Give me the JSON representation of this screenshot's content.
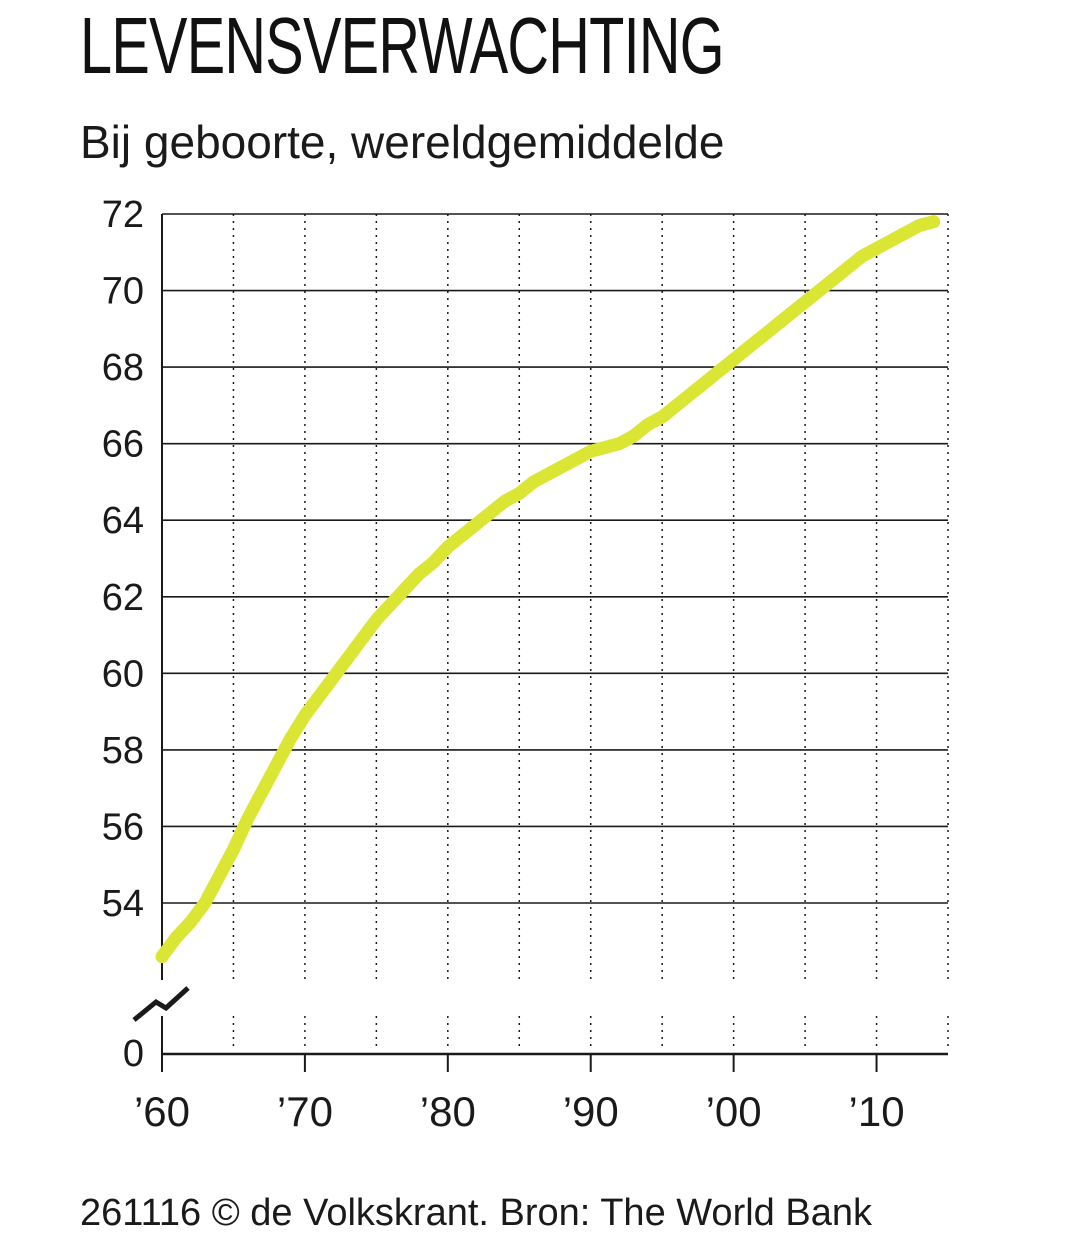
{
  "header": {
    "title": "LEVENSVERWACHTING",
    "subtitle": "Bij geboorte, wereldgemiddelde"
  },
  "footer": {
    "source": "261116 © de Volkskrant. Bron: The World Bank"
  },
  "colors": {
    "line": "#dbe534",
    "grid": "#1a1a1a",
    "axis": "#1a1a1a"
  },
  "chart_data": {
    "type": "line",
    "title": "LEVENSVERWACHTING",
    "subtitle": "Bij geboorte, wereldgemiddelde",
    "xlabel": "",
    "ylabel": "",
    "xlim": [
      1960,
      2015
    ],
    "ylim": [
      52,
      72
    ],
    "y_axis_break": true,
    "y_ticks": [
      72,
      70,
      68,
      66,
      64,
      62,
      60,
      58,
      56,
      54
    ],
    "y_zero_label": "0",
    "x_ticks": [
      {
        "value": 1960,
        "label": "’60"
      },
      {
        "value": 1970,
        "label": "’70"
      },
      {
        "value": 1980,
        "label": "’80"
      },
      {
        "value": 1990,
        "label": "’90"
      },
      {
        "value": 2000,
        "label": "’00"
      },
      {
        "value": 2010,
        "label": "’10"
      }
    ],
    "grid": {
      "horizontal": "solid",
      "vertical": "dotted",
      "vertical_every_years": 5
    },
    "series": [
      {
        "x": [
          1960,
          1961,
          1962,
          1963,
          1964,
          1965,
          1966,
          1967,
          1968,
          1969,
          1970,
          1971,
          1972,
          1973,
          1974,
          1975,
          1976,
          1977,
          1978,
          1979,
          1980,
          1981,
          1982,
          1983,
          1984,
          1985,
          1986,
          1987,
          1988,
          1989,
          1990,
          1991,
          1992,
          1993,
          1994,
          1995,
          1996,
          1997,
          1998,
          1999,
          2000,
          2001,
          2002,
          2003,
          2004,
          2005,
          2006,
          2007,
          2008,
          2009,
          2010,
          2011,
          2012,
          2013,
          2014
        ],
        "y": [
          52.6,
          53.1,
          53.5,
          54.0,
          54.7,
          55.4,
          56.2,
          56.9,
          57.6,
          58.3,
          58.9,
          59.4,
          59.9,
          60.4,
          60.9,
          61.4,
          61.8,
          62.2,
          62.6,
          62.9,
          63.3,
          63.6,
          63.9,
          64.2,
          64.5,
          64.7,
          65.0,
          65.2,
          65.4,
          65.6,
          65.8,
          65.9,
          66.0,
          66.2,
          66.5,
          66.7,
          67.0,
          67.3,
          67.6,
          67.9,
          68.2,
          68.5,
          68.8,
          69.1,
          69.4,
          69.7,
          70.0,
          70.3,
          70.6,
          70.9,
          71.1,
          71.3,
          71.5,
          71.7,
          71.8
        ]
      }
    ]
  }
}
